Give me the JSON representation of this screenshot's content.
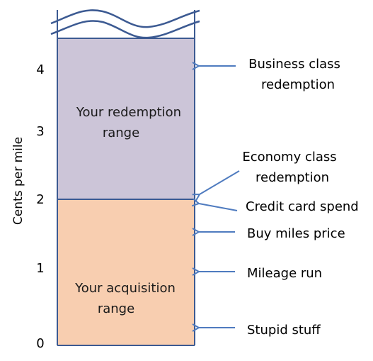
{
  "axis": {
    "ylabel": "Cents per mile",
    "ticks": [
      "0",
      "1",
      "2",
      "3",
      "4"
    ]
  },
  "regions": {
    "redemption": {
      "line1": "Your redemption",
      "line2": "range",
      "color": "#ccc5d8"
    },
    "acquisition": {
      "line1": "Your acquisition",
      "line2": "range",
      "color": "#f8ceb0"
    }
  },
  "annotations": [
    {
      "line1": "Business class",
      "line2": "redemption"
    },
    {
      "line1": "Economy class",
      "line2": "redemption"
    },
    {
      "line1": "Credit card spend",
      "line2": ""
    },
    {
      "line1": "Buy miles price",
      "line2": ""
    },
    {
      "line1": "Mileage run",
      "line2": ""
    },
    {
      "line1": "Stupid stuff",
      "line2": ""
    }
  ],
  "colors": {
    "outline": "#3c5a92",
    "arrow": "#4f7bbf"
  }
}
